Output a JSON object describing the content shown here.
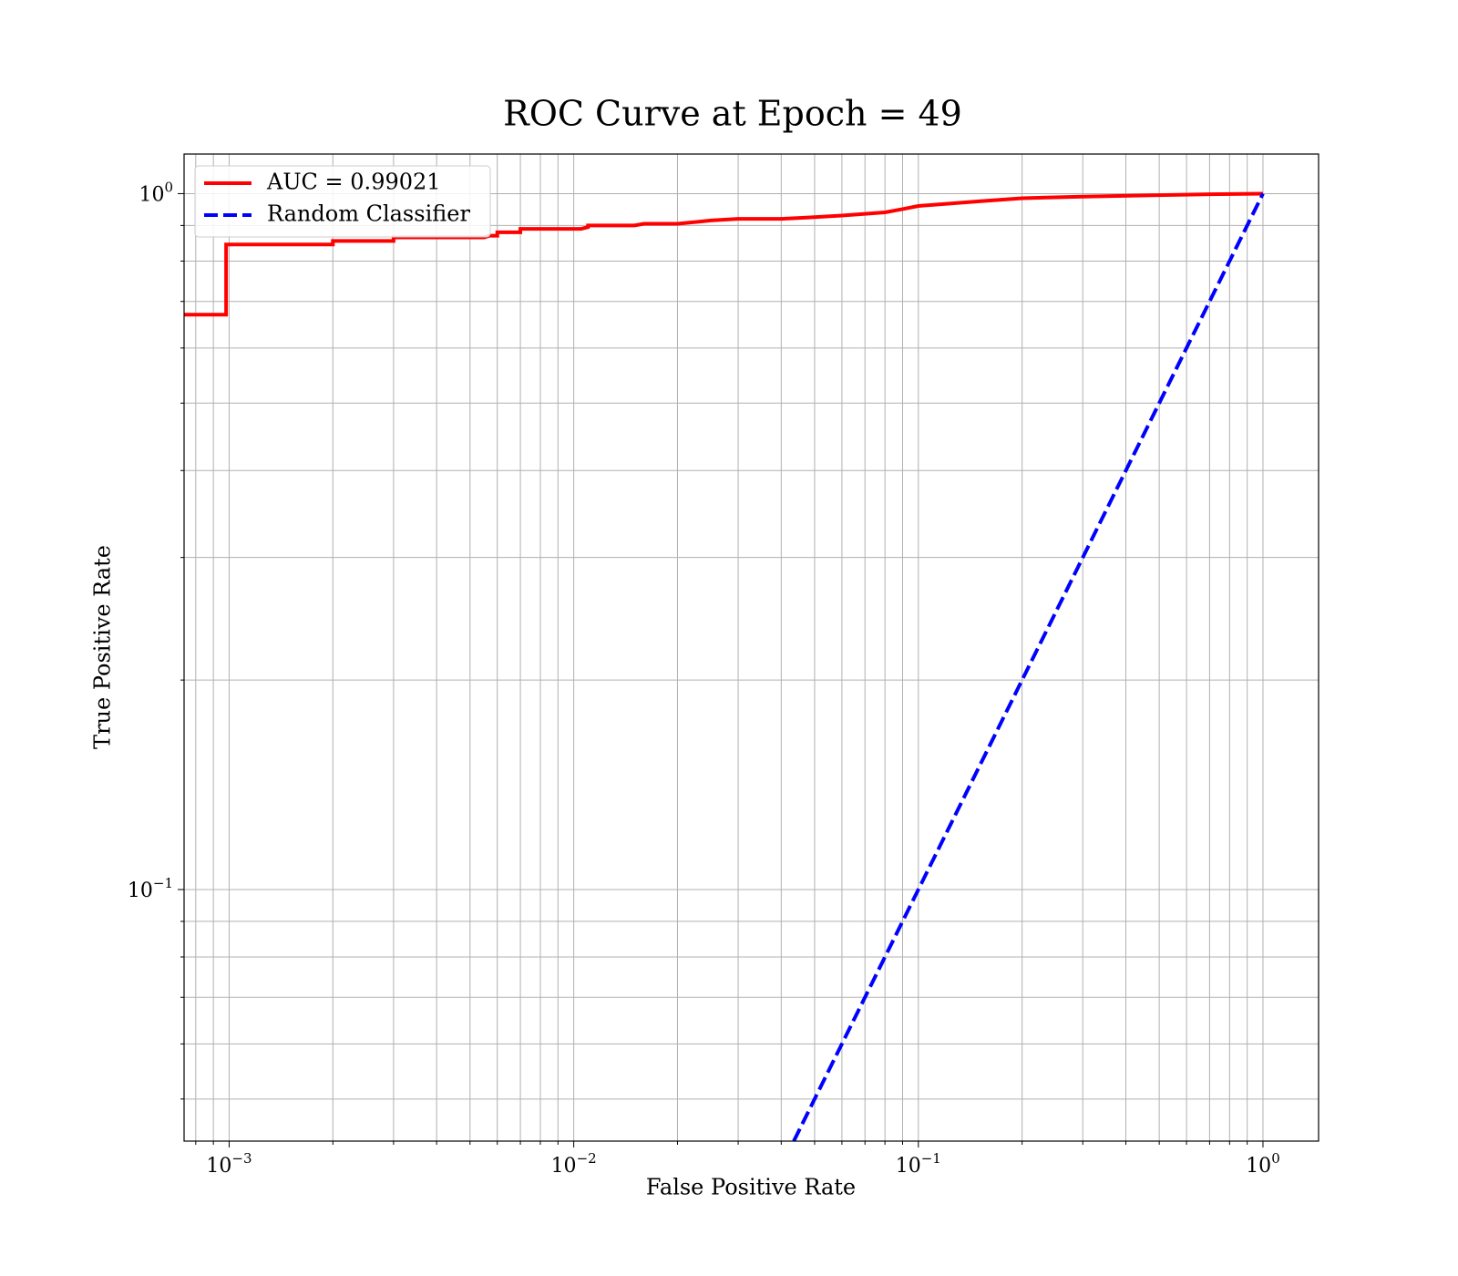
{
  "chart_data": {
    "type": "line",
    "title": "ROC Curve at Epoch = 49",
    "xlabel": "False Positive Rate",
    "ylabel": "True Positive Rate",
    "xscale": "log",
    "yscale": "log",
    "xlim": [
      0.00074,
      1.45
    ],
    "ylim": [
      0.0435,
      1.14
    ],
    "grid": true,
    "grid_minor": true,
    "legend_position": "upper left",
    "xticks": [
      {
        "base": "10",
        "exp": "−3",
        "value": 0.001
      },
      {
        "base": "10",
        "exp": "−2",
        "value": 0.01
      },
      {
        "base": "10",
        "exp": "−1",
        "value": 0.1
      },
      {
        "base": "10",
        "exp": "0",
        "value": 1
      }
    ],
    "yticks": [
      {
        "base": "10",
        "exp": "−1",
        "value": 0.1
      },
      {
        "base": "10",
        "exp": "0",
        "value": 1
      }
    ],
    "series": [
      {
        "name": "AUC = 0.99021",
        "color": "#ff0000",
        "style": "solid",
        "x": [
          0.00074,
          0.00098,
          0.00098,
          0.002,
          0.002,
          0.003,
          0.003,
          0.0055,
          0.0057,
          0.006,
          0.006,
          0.007,
          0.007,
          0.0105,
          0.011,
          0.011,
          0.015,
          0.016,
          0.02,
          0.025,
          0.03,
          0.04,
          0.05,
          0.06,
          0.08,
          0.09,
          0.1,
          0.15,
          0.2,
          0.3,
          0.5,
          0.7,
          1.0
        ],
        "y": [
          0.67,
          0.67,
          0.845,
          0.845,
          0.855,
          0.855,
          0.865,
          0.865,
          0.87,
          0.87,
          0.88,
          0.88,
          0.89,
          0.89,
          0.895,
          0.9,
          0.9,
          0.905,
          0.905,
          0.915,
          0.92,
          0.92,
          0.925,
          0.93,
          0.94,
          0.95,
          0.96,
          0.975,
          0.985,
          0.99,
          0.995,
          0.998,
          1.0
        ]
      },
      {
        "name": "Random Classifier",
        "color": "#0000ff",
        "style": "dashed",
        "x": [
          0.0435,
          1.0
        ],
        "y": [
          0.0435,
          1.0
        ]
      }
    ]
  }
}
